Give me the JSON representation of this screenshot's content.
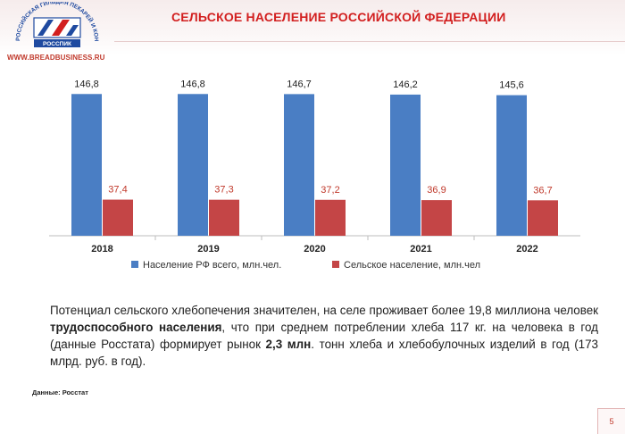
{
  "header": {
    "title": "СЕЛЬСКОЕ НАСЕЛЕНИЕ РОССИЙСКОЙ ФЕДЕРАЦИИ",
    "site": "WWW.BREADBUSINESS.RU",
    "logo_text": "РОССПИК"
  },
  "colors": {
    "series_total": "#4a7ec4",
    "series_rural": "#c44546",
    "accent": "#d21f1f"
  },
  "chart_data": {
    "type": "bar",
    "categories": [
      "2018",
      "2019",
      "2020",
      "2021",
      "2022"
    ],
    "series": [
      {
        "name": "Население РФ всего, млн.чел.",
        "values": [
          146.8,
          146.8,
          146.7,
          146.2,
          145.6
        ],
        "labels": [
          "146,8",
          "146,8",
          "146,7",
          "146,2",
          "145,6"
        ]
      },
      {
        "name": "Сельское население, млн.чел",
        "values": [
          37.4,
          37.3,
          37.2,
          36.9,
          36.7
        ],
        "labels": [
          "37,4",
          "37,3",
          "37,2",
          "36,9",
          "36,7"
        ]
      }
    ],
    "title": "",
    "xlabel": "",
    "ylabel": "",
    "ylim": [
      0,
      160
    ],
    "legend": "bottom",
    "grid": false
  },
  "text": {
    "p_start": "Потенциал сельского хлебопечения значителен, на селе проживает более 19,8 миллиона человек ",
    "p_bold1": "трудоспособного населения",
    "p_mid": ", что при среднем потреблении хлеба 117 кг. на человека в год (данные Росстата) формирует рынок ",
    "p_bold2": "2,3 млн",
    "p_end": ". тонн хлеба и хлебобулочных изделий в год (173 млрд. руб. в год).",
    "source": "Данные: Росстат"
  },
  "page": {
    "number": "5"
  }
}
